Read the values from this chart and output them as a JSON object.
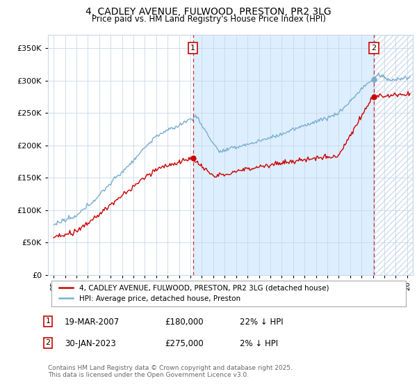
{
  "title": "4, CADLEY AVENUE, FULWOOD, PRESTON, PR2 3LG",
  "subtitle": "Price paid vs. HM Land Registry's House Price Index (HPI)",
  "ylim": [
    0,
    370000
  ],
  "yticks": [
    0,
    50000,
    100000,
    150000,
    200000,
    250000,
    300000,
    350000
  ],
  "xlim_start": 1994.5,
  "xlim_end": 2026.5,
  "sale1_date": 2007.21,
  "sale1_price": 180000,
  "sale2_date": 2023.08,
  "sale2_price": 275000,
  "legend_label_red": "4, CADLEY AVENUE, FULWOOD, PRESTON, PR2 3LG (detached house)",
  "legend_label_blue": "HPI: Average price, detached house, Preston",
  "annotation1_label": "19-MAR-2007",
  "annotation1_price": "£180,000",
  "annotation1_hpi": "22% ↓ HPI",
  "annotation2_label": "30-JAN-2023",
  "annotation2_price": "£275,000",
  "annotation2_hpi": "2% ↓ HPI",
  "footer": "Contains HM Land Registry data © Crown copyright and database right 2025.\nThis data is licensed under the Open Government Licence v3.0.",
  "red_color": "#cc0000",
  "blue_color": "#7aadcf",
  "shade_color": "#ddeeff",
  "hatch_color": "#ccddee",
  "background_color": "#ffffff",
  "grid_color": "#c8d8e8"
}
